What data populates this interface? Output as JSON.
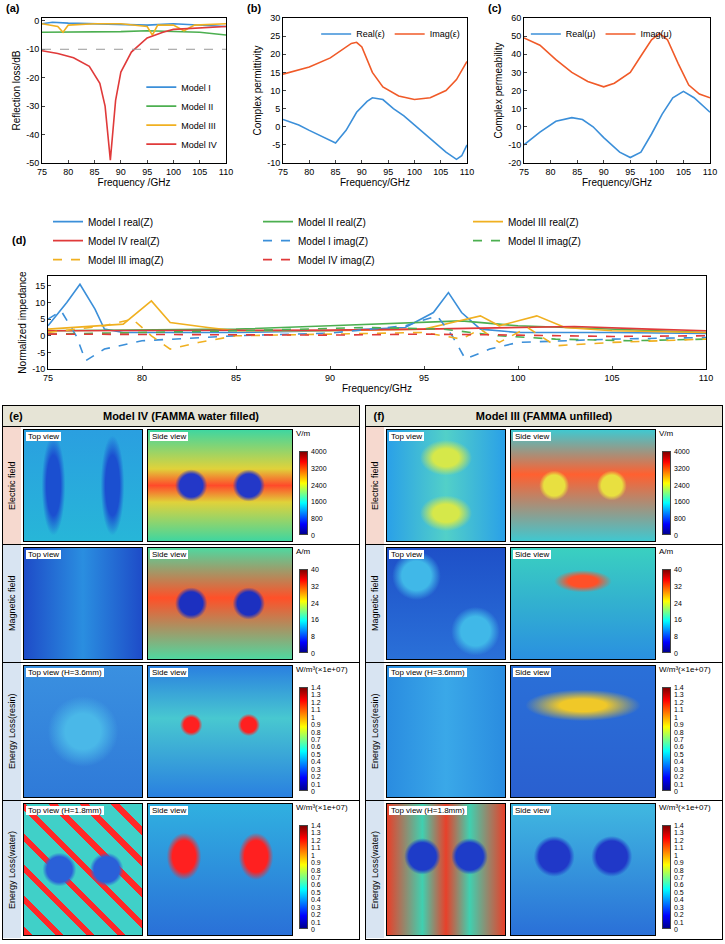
{
  "chart_data": [
    {
      "type": "line",
      "label": "(a)",
      "x_label": "Frequency /GHz",
      "y_label": "Reflection loss/dB",
      "xlim": [
        75,
        110
      ],
      "xticks": [
        75,
        80,
        85,
        90,
        95,
        100,
        105,
        110
      ],
      "ylim": [
        -50,
        1
      ],
      "yticks": [
        -50,
        -40,
        -30,
        -20,
        -10,
        0
      ],
      "reference_line": -10,
      "legend": "lower right",
      "grid": false,
      "series": [
        {
          "name": "Model I",
          "color": "#3b8fd9",
          "x": [
            75,
            77,
            80,
            85,
            90,
            95,
            100,
            105,
            110
          ],
          "values": [
            -1,
            -0.5,
            -0.8,
            -1,
            -1.2,
            -1.5,
            -1,
            -1.5,
            -2
          ]
        },
        {
          "name": "Model II",
          "color": "#4caf50",
          "x": [
            75,
            80,
            85,
            90,
            95,
            100,
            105,
            110
          ],
          "values": [
            -4,
            -4,
            -4,
            -3.8,
            -3.5,
            -3.8,
            -4,
            -5
          ]
        },
        {
          "name": "Model III",
          "color": "#f0b020",
          "x": [
            75,
            78,
            79,
            80,
            85,
            90,
            95,
            96,
            97,
            100,
            102,
            104,
            110
          ],
          "values": [
            -1,
            -2,
            -4,
            -1.5,
            -1,
            -1,
            -2,
            -5,
            -1.5,
            -1.5,
            -3.5,
            -1.5,
            -1
          ]
        },
        {
          "name": "Model IV",
          "color": "#e03a3a",
          "x": [
            75,
            78,
            81,
            84,
            86,
            87,
            88,
            89,
            90,
            92,
            95,
            98,
            100,
            105,
            110
          ],
          "values": [
            -10.5,
            -11.5,
            -13,
            -16,
            -22,
            -30,
            -49,
            -28,
            -18,
            -11,
            -6,
            -4,
            -3,
            -2.5,
            -2
          ]
        }
      ]
    },
    {
      "type": "line",
      "label": "(b)",
      "x_label": "Frequency/GHz",
      "y_label": "Complex permittivity",
      "xlim": [
        75,
        110
      ],
      "xticks": [
        75,
        80,
        85,
        90,
        95,
        100,
        105,
        110
      ],
      "ylim": [
        -10,
        30
      ],
      "yticks": [
        -10,
        -5,
        0,
        5,
        10,
        15,
        20,
        25,
        30
      ],
      "legend": "upper right",
      "grid": false,
      "series": [
        {
          "name": "Real(ε)",
          "color": "#3b8fd9",
          "x": [
            75,
            78,
            80,
            83,
            85,
            87,
            89,
            91,
            92,
            94,
            96,
            98,
            100,
            103,
            106,
            108,
            109,
            110
          ],
          "values": [
            2,
            0.5,
            -1,
            -3,
            -4.5,
            -1,
            4,
            7,
            8,
            7.5,
            5,
            3,
            0.5,
            -3,
            -7,
            -9,
            -8,
            -5
          ]
        },
        {
          "name": "Imag(ε)",
          "color": "#f05a28",
          "x": [
            75,
            80,
            84,
            86,
            88,
            89,
            90,
            92,
            94,
            97,
            100,
            103,
            106,
            108,
            110
          ],
          "values": [
            14.5,
            16.5,
            19,
            21,
            23,
            23.3,
            22,
            15,
            11,
            8.5,
            7.5,
            8,
            10,
            13,
            18
          ]
        }
      ]
    },
    {
      "type": "line",
      "label": "(c)",
      "x_label": "Frequency/GHz",
      "y_label": "Complex permeability",
      "xlim": [
        75,
        110
      ],
      "xticks": [
        75,
        80,
        85,
        90,
        95,
        100,
        105,
        110
      ],
      "ylim": [
        -20,
        60
      ],
      "yticks": [
        -20,
        -10,
        0,
        10,
        20,
        30,
        40,
        50,
        60
      ],
      "legend": "upper left",
      "grid": false,
      "series": [
        {
          "name": "Real(μ)",
          "color": "#3b8fd9",
          "x": [
            75,
            78,
            81,
            84,
            86,
            88,
            90,
            93,
            95,
            97,
            99,
            101,
            103,
            105,
            107,
            109,
            110
          ],
          "values": [
            -10,
            -3,
            3,
            5,
            4,
            0,
            -6,
            -14,
            -17,
            -14,
            -4,
            7,
            16,
            19.5,
            16,
            11,
            8
          ]
        },
        {
          "name": "Imag(μ)",
          "color": "#f05a28",
          "x": [
            75,
            78,
            81,
            84,
            87,
            90,
            92,
            95,
            97,
            99,
            100.5,
            102,
            104,
            106,
            108,
            110
          ],
          "values": [
            49,
            45,
            37,
            30,
            25,
            22,
            24,
            30,
            39,
            48,
            51.5,
            48,
            35,
            23,
            18,
            16
          ]
        }
      ]
    },
    {
      "type": "line",
      "label": "(d)",
      "x_label": "Frequency/GHz",
      "y_label": "Normalized impedance",
      "xlim": [
        75,
        110
      ],
      "xticks": [
        75,
        80,
        85,
        90,
        95,
        100,
        105,
        110
      ],
      "ylim": [
        -10,
        18
      ],
      "yticks": [
        -10,
        -5,
        0,
        5,
        10,
        15
      ],
      "legend": "top",
      "grid": false,
      "series": [
        {
          "name": "Model I real(Z)",
          "color": "#3b8fd9",
          "line_style": "solid",
          "x": [
            75,
            76,
            76.7,
            77.5,
            78,
            79,
            85,
            90,
            94,
            95.5,
            96.3,
            97,
            98,
            100,
            105,
            110
          ],
          "values": [
            3,
            10,
            15.5,
            8,
            2,
            1,
            1,
            1.5,
            2.5,
            7,
            13,
            7,
            2,
            1,
            1,
            0.7
          ]
        },
        {
          "name": "Model II real(Z)",
          "color": "#4caf50",
          "line_style": "solid",
          "x": [
            75,
            85,
            90,
            95,
            97,
            100,
            105,
            110
          ],
          "values": [
            1.5,
            2,
            3,
            4,
            4.5,
            3,
            2,
            1
          ]
        },
        {
          "name": "Model III real(Z)",
          "color": "#f0b020",
          "line_style": "solid",
          "x": [
            75,
            79,
            80.5,
            81.5,
            83.5,
            85,
            90,
            95,
            96.5,
            98,
            99,
            101,
            102.5,
            105,
            110
          ],
          "values": [
            2,
            3.5,
            10.5,
            4,
            2.5,
            1.5,
            1.5,
            2,
            4,
            6,
            3,
            6,
            2.5,
            1.5,
            1
          ]
        },
        {
          "name": "Model IV real(Z)",
          "color": "#e03a3a",
          "line_style": "solid",
          "x": [
            75,
            80,
            85,
            90,
            95,
            100,
            103,
            107,
            110
          ],
          "values": [
            1.5,
            1.5,
            1.5,
            1.7,
            2,
            2.5,
            2.8,
            2,
            1.5
          ]
        },
        {
          "name": "Model I imag(Z)",
          "color": "#3b8fd9",
          "line_style": "dash",
          "x": [
            75,
            75.7,
            76.5,
            77,
            78,
            80,
            85,
            90,
            94,
            95.7,
            96.5,
            97.2,
            98.5,
            100,
            105,
            110
          ],
          "values": [
            5,
            7.5,
            0,
            -7.5,
            -4,
            -1.5,
            0,
            0.8,
            3,
            6,
            0,
            -7,
            -4,
            -2,
            -1,
            -0.5
          ]
        },
        {
          "name": "Model II imag(Z)",
          "color": "#4caf50",
          "line_style": "dash",
          "x": [
            75,
            85,
            92,
            96,
            99,
            102,
            106,
            110
          ],
          "values": [
            0.5,
            1.5,
            2.5,
            2,
            0,
            -1,
            -1.5,
            -1
          ]
        },
        {
          "name": "Model III imag(Z)",
          "color": "#f0b020",
          "line_style": "dash",
          "x": [
            75,
            78,
            79.5,
            80.5,
            81.5,
            83,
            85,
            90,
            95,
            97,
            98,
            99,
            100.5,
            102,
            105,
            110
          ],
          "values": [
            1,
            3,
            5,
            0,
            -4,
            -2,
            0,
            0.5,
            1,
            -1,
            2,
            -2,
            2.5,
            -3,
            -2,
            -1
          ]
        },
        {
          "name": "Model IV imag(Z)",
          "color": "#e03a3a",
          "line_style": "dash",
          "x": [
            75,
            80,
            85,
            90,
            95,
            100,
            105,
            110
          ],
          "values": [
            0.5,
            0.5,
            0.3,
            0.2,
            0.5,
            0.2,
            -0.2,
            0
          ]
        }
      ]
    }
  ],
  "field_maps": {
    "panels": [
      {
        "letter": "(e)",
        "title": "Model IV (FAMMA water filled)"
      },
      {
        "letter": "(f)",
        "title": "Model III (FAMMA unfilled)"
      }
    ],
    "rows": [
      {
        "label": "Electric field",
        "views": [
          "Top view",
          "Side view"
        ],
        "unit": "V/m",
        "ticks": [
          0,
          800,
          1600,
          2400,
          3200,
          4000
        ]
      },
      {
        "label": "Magnetic field",
        "views": [
          "Top view",
          "Side view"
        ],
        "unit": "A/m",
        "ticks": [
          0,
          8,
          16,
          24,
          32,
          40
        ]
      },
      {
        "label": "Energy Loss(resin)",
        "views": [
          "Top view (H=3.6mm)",
          "Side view"
        ],
        "unit": "W/m³(×1e+07)",
        "ticks": [
          0,
          0.1,
          0.2,
          0.3,
          0.4,
          0.5,
          0.6,
          0.7,
          0.8,
          0.9,
          1,
          1.1,
          1.2,
          1.3,
          1.4
        ]
      },
      {
        "label": "Energy Loss(water)",
        "views": [
          "Top view (H=1.8mm)",
          "Side view"
        ],
        "unit": "W/m³(×1e+07)",
        "ticks": [
          0,
          0.1,
          0.2,
          0.3,
          0.4,
          0.5,
          0.6,
          0.7,
          0.8,
          0.9,
          1,
          1.1,
          1.2,
          1.3,
          1.4
        ]
      }
    ]
  }
}
